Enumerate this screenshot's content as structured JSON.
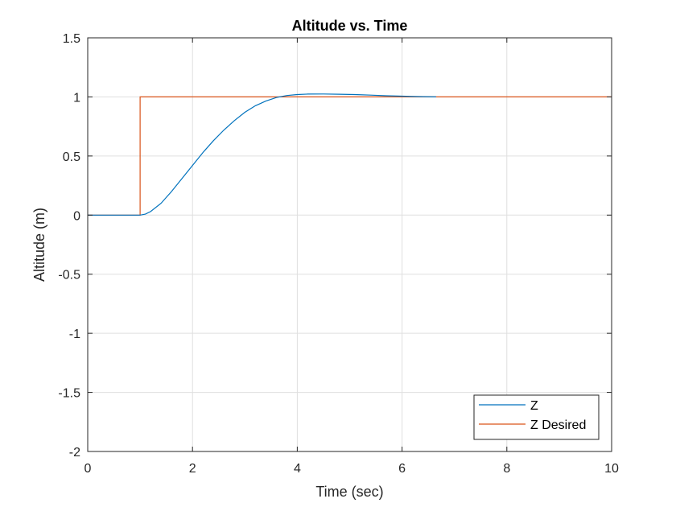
{
  "chart_data": {
    "type": "line",
    "title": "Altitude vs. Time",
    "xlabel": "Time (sec)",
    "ylabel": "Altitude (m)",
    "xlim": [
      0,
      10
    ],
    "ylim": [
      -2,
      1.5
    ],
    "xticks": [
      0,
      2,
      4,
      6,
      8,
      10
    ],
    "yticks": [
      -2,
      -1.5,
      -1,
      -0.5,
      0,
      0.5,
      1,
      1.5
    ],
    "xtick_labels": [
      "0",
      "2",
      "4",
      "6",
      "8",
      "10"
    ],
    "ytick_labels": [
      "-2",
      "-1.5",
      "-1",
      "-0.5",
      "0",
      "0.5",
      "1",
      "1.5"
    ],
    "grid": true,
    "legend_position": "bottom-right",
    "series": [
      {
        "name": "Z",
        "color": "#0072BD",
        "x": [
          0,
          1.0,
          1.1,
          1.2,
          1.4,
          1.6,
          1.8,
          2.0,
          2.2,
          2.4,
          2.6,
          2.8,
          3.0,
          3.2,
          3.4,
          3.6,
          3.8,
          4.0,
          4.2,
          4.5,
          4.8,
          5.1,
          5.4,
          5.7,
          6.0,
          6.3,
          6.65
        ],
        "y": [
          0,
          0,
          0.008,
          0.03,
          0.1,
          0.2,
          0.31,
          0.42,
          0.53,
          0.63,
          0.72,
          0.8,
          0.87,
          0.925,
          0.965,
          0.995,
          1.012,
          1.02,
          1.024,
          1.025,
          1.023,
          1.02,
          1.015,
          1.01,
          1.006,
          1.003,
          1.0
        ]
      },
      {
        "name": "Z Desired",
        "color": "#D95319",
        "x": [
          0,
          1.0,
          1.0,
          10
        ],
        "y": [
          0,
          0,
          1,
          1
        ]
      }
    ]
  }
}
